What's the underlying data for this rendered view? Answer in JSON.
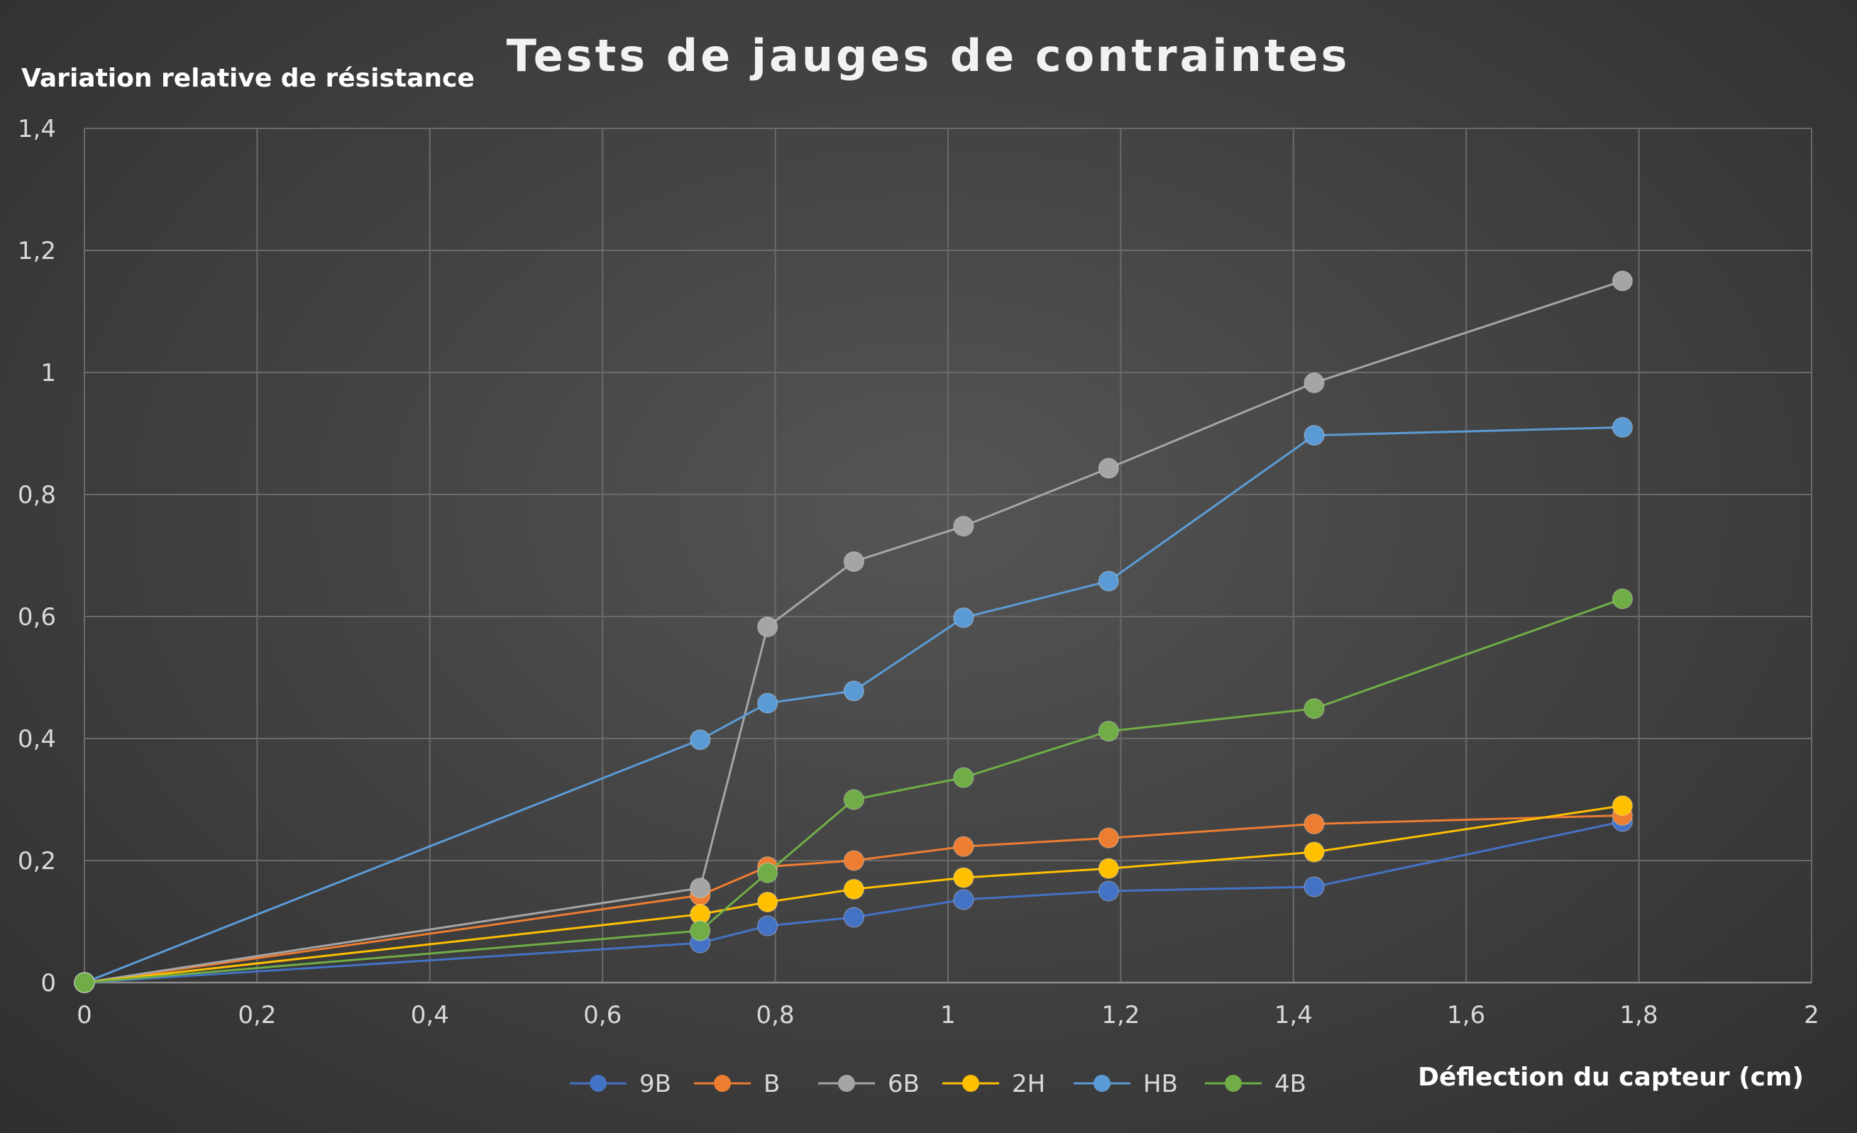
{
  "chart_data": {
    "type": "line",
    "title": "Tests de jauges de contraintes",
    "xlabel": "Déflection du capteur (cm)",
    "ylabel": "Variation relative de résistance",
    "xlim": [
      0,
      2
    ],
    "ylim": [
      0,
      1.4
    ],
    "xticks": [
      0,
      0.2,
      0.4,
      0.6,
      0.8,
      1,
      1.2,
      1.4,
      1.6,
      1.8,
      2
    ],
    "xtick_labels": [
      "0",
      "0,2",
      "0,4",
      "0,6",
      "0,8",
      "1",
      "1,2",
      "1,4",
      "1,6",
      "1,8",
      "2"
    ],
    "yticks": [
      0,
      0.2,
      0.4,
      0.6,
      0.8,
      1,
      1.2,
      1.4
    ],
    "ytick_labels": [
      "0",
      "0,2",
      "0,4",
      "0,6",
      "0,8",
      "1",
      "1,2",
      "1,4"
    ],
    "grid": true,
    "legend_position": "bottom",
    "x": [
      0,
      0.713,
      0.791,
      0.891,
      1.018,
      1.186,
      1.424,
      1.781
    ],
    "series": [
      {
        "name": "9B",
        "color": "#4472C4",
        "values": [
          0,
          0.065,
          0.093,
          0.107,
          0.136,
          0.15,
          0.157,
          0.264
        ]
      },
      {
        "name": "B",
        "color": "#ED7D31",
        "values": [
          0,
          0.143,
          0.19,
          0.2,
          0.223,
          0.237,
          0.26,
          0.274
        ]
      },
      {
        "name": "6B",
        "color": "#A5A5A5",
        "values": [
          0,
          0.155,
          0.583,
          0.69,
          0.748,
          0.843,
          0.983,
          1.15
        ]
      },
      {
        "name": "2H",
        "color": "#FFC000",
        "values": [
          0,
          0.112,
          0.132,
          0.153,
          0.172,
          0.187,
          0.214,
          0.29
        ]
      },
      {
        "name": "HB",
        "color": "#5B9BD5",
        "values": [
          0,
          0.398,
          0.458,
          0.478,
          0.598,
          0.658,
          0.897,
          0.91
        ]
      },
      {
        "name": "4B",
        "color": "#70AD47",
        "values": [
          0,
          0.085,
          0.18,
          0.3,
          0.336,
          0.412,
          0.449,
          0.629
        ]
      }
    ]
  }
}
